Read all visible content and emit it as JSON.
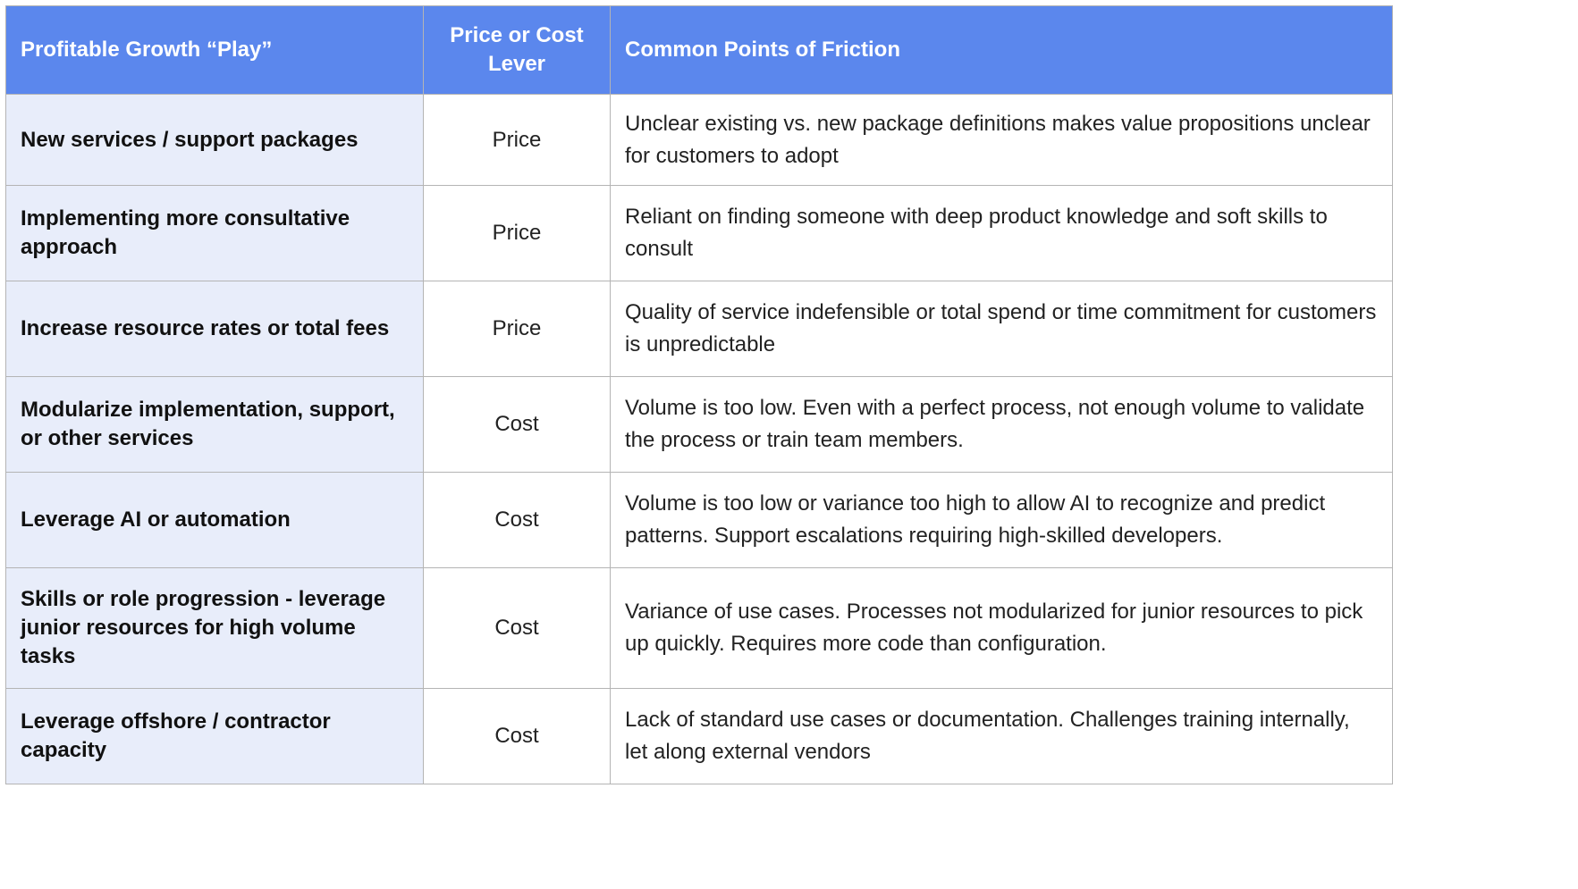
{
  "table": {
    "headers": [
      "Profitable Growth “Play”",
      "Price or Cost Lever",
      "Common Points of Friction"
    ],
    "rows": [
      {
        "play": "New services / support packages",
        "lever": "Price",
        "friction": "Unclear existing vs. new package definitions makes value propositions unclear for customers to adopt"
      },
      {
        "play": "Implementing more consultative approach",
        "lever": "Price",
        "friction": "Reliant on finding someone with deep product knowledge and soft skills to consult"
      },
      {
        "play": "Increase resource rates or total fees",
        "lever": "Price",
        "friction": "Quality of service indefensible or total spend or time commitment for customers is unpredictable"
      },
      {
        "play": "Modularize implementation, support, or other services",
        "lever": "Cost",
        "friction": "Volume is too low.  Even with a perfect process, not enough volume to validate the process or train team members."
      },
      {
        "play": "Leverage AI or automation",
        "lever": "Cost",
        "friction": "Volume is too low or variance too high to allow AI to recognize and predict patterns.  Support escalations requiring high-skilled developers."
      },
      {
        "play": "Skills or role progression - leverage junior resources for high volume tasks",
        "lever": "Cost",
        "friction": "Variance of use cases.  Processes not modularized for junior resources to pick up quickly.  Requires more code than configuration."
      },
      {
        "play": "Leverage offshore / contractor capacity",
        "lever": "Cost",
        "friction": "Lack of standard use cases or documentation.  Challenges training internally, let along external vendors"
      }
    ]
  },
  "colors": {
    "header_bg": "#5b87ed",
    "header_text": "#ffffff",
    "first_col_bg": "#e8edfa",
    "border": "#b4b4b4"
  }
}
